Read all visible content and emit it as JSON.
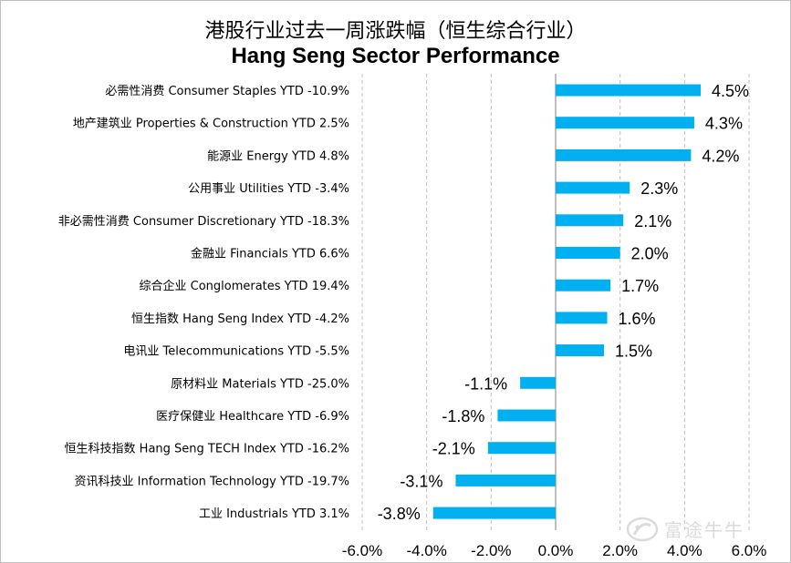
{
  "title_cn": "港股行业过去一周涨跌幅（恒生综合行业）",
  "title_en": "Hang Seng Sector Performance",
  "chart_data": {
    "type": "bar",
    "orientation": "horizontal",
    "categories": [
      "必需性消费 Consumer Staples YTD -10.9%",
      "地产建筑业 Properties & Construction YTD 2.5%",
      "能源业 Energy YTD 4.8%",
      "公用事业 Utilities YTD -3.4%",
      "非必需性消费 Consumer Discretionary YTD -18.3%",
      "金融业 Financials YTD 6.6%",
      "综合企业 Conglomerates YTD 19.4%",
      "恒生指数 Hang Seng Index YTD -4.2%",
      "电讯业 Telecommunications YTD -5.5%",
      "原材料业 Materials YTD -25.0%",
      "医疗保健业 Healthcare YTD -6.9%",
      "恒生科技指数 Hang Seng TECH Index YTD -16.2%",
      "资讯科技业 Information Technology YTD -19.7%",
      "工业 Industrials YTD 3.1%"
    ],
    "values": [
      4.5,
      4.3,
      4.2,
      2.3,
      2.1,
      2.0,
      1.7,
      1.6,
      1.5,
      -1.1,
      -1.8,
      -2.1,
      -3.1,
      -3.8
    ],
    "value_labels": [
      "4.5%",
      "4.3%",
      "4.2%",
      "2.3%",
      "2.1%",
      "2.0%",
      "1.7%",
      "1.6%",
      "1.5%",
      "-1.1%",
      "-1.8%",
      "-2.1%",
      "-3.1%",
      "-3.8%"
    ],
    "xlim": [
      -6,
      6
    ],
    "x_ticks": [
      -6,
      -4,
      -2,
      0,
      2,
      4,
      6
    ],
    "x_tick_labels": [
      "-6.0%",
      "-4.0%",
      "-2.0%",
      "0.0%",
      "2.0%",
      "4.0%",
      "6.0%"
    ],
    "grid": "vertical-dashed",
    "bar_color": "#00b0f0",
    "legend": "none"
  },
  "watermark": {
    "text": "富途牛牛",
    "icon": "futu-logo-icon"
  },
  "colors": {
    "bar": "#00b0f0",
    "grid": "#bfbfbf",
    "axis": "#7f7f7f",
    "text": "#000000",
    "border": "#bfbfbf"
  }
}
